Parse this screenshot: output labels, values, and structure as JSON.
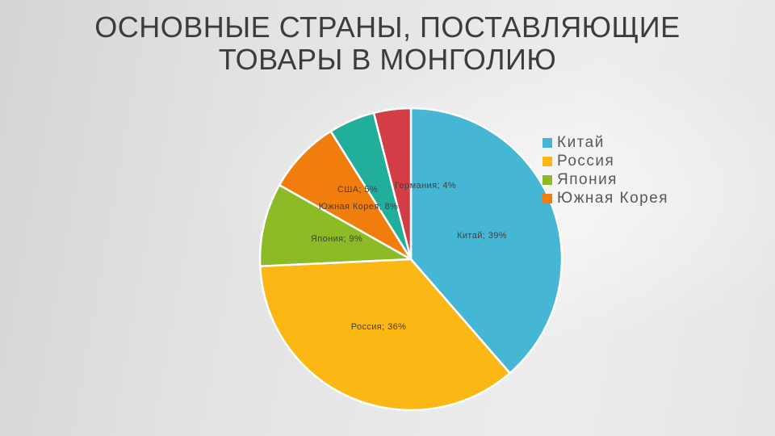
{
  "slide": {
    "title": "ОСНОВНЫЕ СТРАНЫ, ПОСТАВЛЯЮЩИЕ ТОВАРЫ В МОНГОЛИЮ"
  },
  "chart_data": {
    "type": "pie",
    "title": "ОСНОВНЫЕ СТРАНЫ, ПОСТАВЛЯЮЩИЕ ТОВАРЫ В МОНГОЛИЮ",
    "legend_position": "right",
    "unit": "%",
    "categories": [
      "Китай",
      "Россия",
      "Япония",
      "Южная Корея",
      "США",
      "Германия"
    ],
    "values": [
      39,
      36,
      9,
      8,
      5,
      4
    ],
    "slices": [
      {
        "name": "Китай",
        "value": 39,
        "label": "Китай; 39%",
        "color": "#45B7D4"
      },
      {
        "name": "Россия",
        "value": 36,
        "label": "Россия; 36%",
        "color": "#FBB713"
      },
      {
        "name": "Япония",
        "value": 9,
        "label": "Япония; 9%",
        "color": "#8CBB26"
      },
      {
        "name": "Южная Корея",
        "value": 8,
        "label": "Южная Корея; 8%",
        "color": "#F07D0C"
      },
      {
        "name": "США",
        "value": 5,
        "label": "США; 5%",
        "color": "#21AE9A"
      },
      {
        "name": "Германия",
        "value": 4,
        "label": "Германия; 4%",
        "color": "#D33D46"
      }
    ],
    "legend": [
      "Китай",
      "Россия",
      "Япония",
      "Южная Корея"
    ]
  },
  "style": {
    "slice_border_color": "#FFFFFF",
    "slice_label_color": "#404040",
    "legend_text_color": "#595959",
    "title_color": "#3C3C3C"
  }
}
